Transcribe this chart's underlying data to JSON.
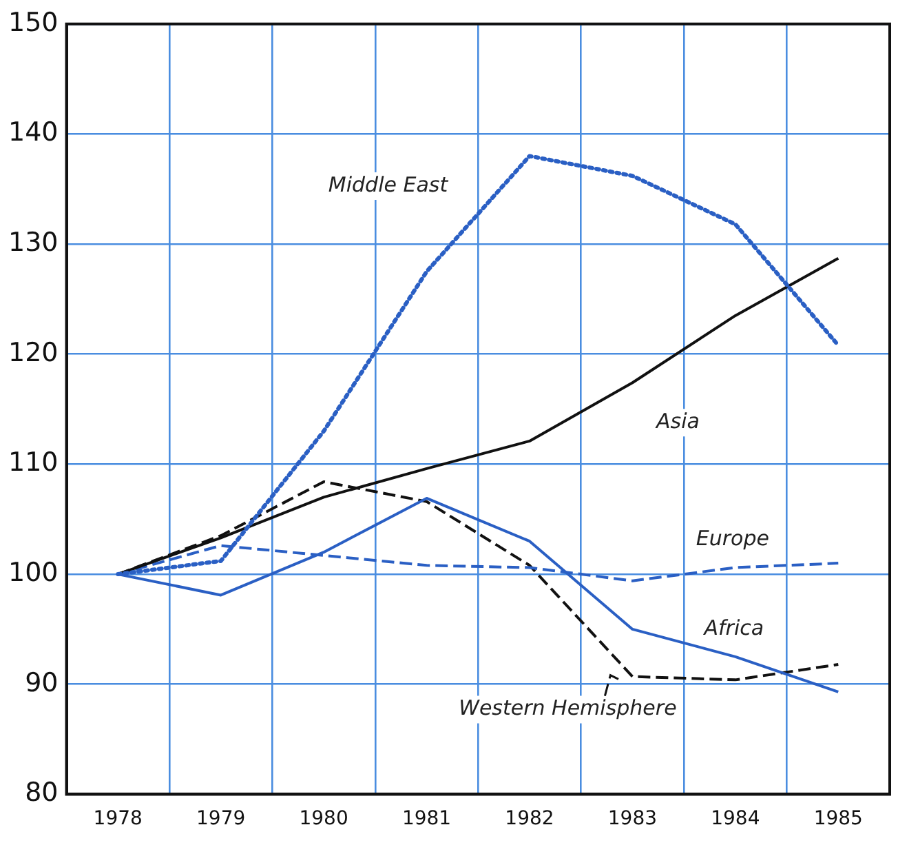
{
  "chart_data": {
    "type": "line",
    "categories": [
      "1978",
      "1979",
      "1980",
      "1981",
      "1982",
      "1983",
      "1984",
      "1985"
    ],
    "ylim": [
      80,
      150
    ],
    "yticks": [
      80,
      90,
      100,
      110,
      120,
      130,
      140,
      150
    ],
    "grid": true,
    "marker": "none",
    "series": [
      {
        "name": "Middle East",
        "color": "#2a5fc4",
        "line_style": "dotted",
        "values": [
          100,
          101.2,
          113,
          127.5,
          138,
          136.2,
          131.8,
          120.8
        ]
      },
      {
        "name": "Asia",
        "color": "#111111",
        "line_style": "solid",
        "values": [
          100,
          103.3,
          107,
          109.6,
          112.1,
          117.4,
          123.5,
          128.7
        ]
      },
      {
        "name": "Europe",
        "color": "#2a5fc4",
        "line_style": "dashed",
        "values": [
          100,
          102.6,
          101.7,
          100.8,
          100.6,
          99.4,
          100.6,
          101
        ]
      },
      {
        "name": "Africa",
        "color": "#2a5fc4",
        "line_style": "solid",
        "values": [
          100,
          98.1,
          102,
          106.9,
          103,
          95,
          92.5,
          89.3
        ]
      },
      {
        "name": "Western Hemisphere",
        "color": "#111111",
        "line_style": "dashed",
        "values": [
          100,
          103.5,
          108.4,
          106.6,
          100.8,
          90.7,
          90.4,
          91.8
        ]
      }
    ]
  }
}
